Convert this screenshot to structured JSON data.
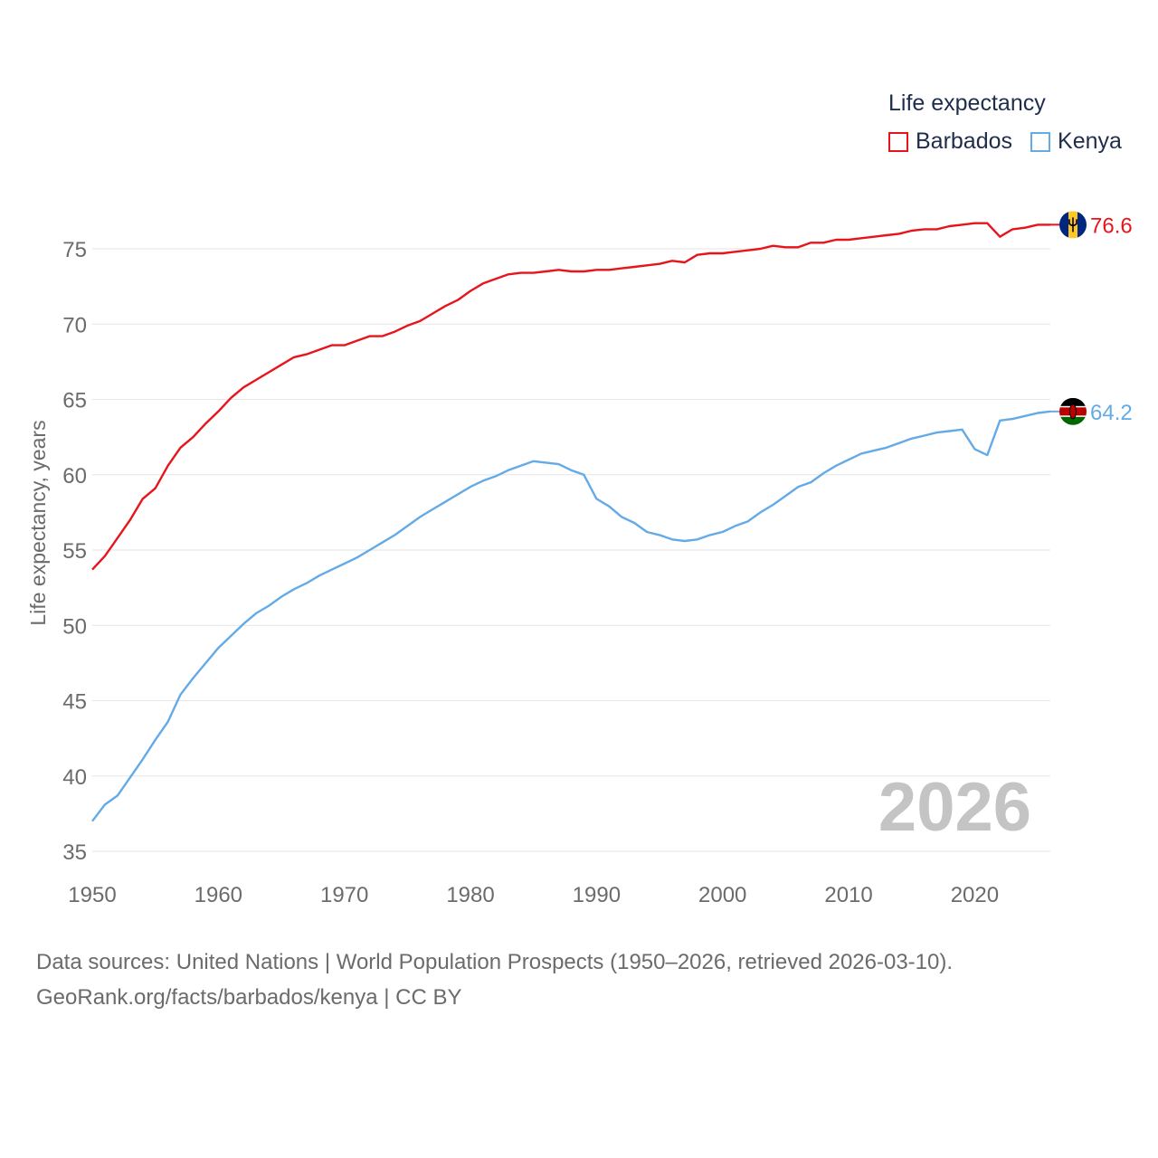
{
  "legend": {
    "title": "Life expectancy",
    "items": [
      {
        "label": "Barbados",
        "color": "#e8141c"
      },
      {
        "label": "Kenya",
        "color": "#64aae6"
      }
    ]
  },
  "source": {
    "line1": "Data sources: United Nations | World Population Prospects (1950–2026, retrieved 2026-03-10).",
    "line2": "GeoRank.org/facts/barbados/kenya | CC BY"
  },
  "chart_data": {
    "type": "line",
    "title": "Life expectancy",
    "xlabel": "",
    "ylabel": "Life expectancy, years",
    "xlim": [
      1950,
      2026
    ],
    "ylim": [
      35,
      78
    ],
    "xticks": [
      1950,
      1960,
      1970,
      1980,
      1990,
      2000,
      2010,
      2020
    ],
    "yticks": [
      35,
      40,
      45,
      50,
      55,
      60,
      65,
      70,
      75
    ],
    "grid": true,
    "watermark_year": "2026",
    "legend_position": "top-right",
    "series": [
      {
        "name": "Barbados",
        "color": "#e8141c",
        "end_label": "76.6",
        "flag": "barbados-flag-icon",
        "points": [
          [
            1950,
            53.7
          ],
          [
            1951,
            54.6
          ],
          [
            1952,
            55.8
          ],
          [
            1953,
            57.0
          ],
          [
            1954,
            58.4
          ],
          [
            1955,
            59.1
          ],
          [
            1956,
            60.6
          ],
          [
            1957,
            61.8
          ],
          [
            1958,
            62.5
          ],
          [
            1959,
            63.4
          ],
          [
            1960,
            64.2
          ],
          [
            1961,
            65.1
          ],
          [
            1962,
            65.8
          ],
          [
            1963,
            66.3
          ],
          [
            1964,
            66.8
          ],
          [
            1965,
            67.3
          ],
          [
            1966,
            67.8
          ],
          [
            1967,
            68.0
          ],
          [
            1968,
            68.3
          ],
          [
            1969,
            68.6
          ],
          [
            1970,
            68.6
          ],
          [
            1971,
            68.9
          ],
          [
            1972,
            69.2
          ],
          [
            1973,
            69.2
          ],
          [
            1974,
            69.5
          ],
          [
            1975,
            69.9
          ],
          [
            1976,
            70.2
          ],
          [
            1977,
            70.7
          ],
          [
            1978,
            71.2
          ],
          [
            1979,
            71.6
          ],
          [
            1980,
            72.2
          ],
          [
            1981,
            72.7
          ],
          [
            1982,
            73.0
          ],
          [
            1983,
            73.3
          ],
          [
            1984,
            73.4
          ],
          [
            1985,
            73.4
          ],
          [
            1986,
            73.5
          ],
          [
            1987,
            73.6
          ],
          [
            1988,
            73.5
          ],
          [
            1989,
            73.5
          ],
          [
            1990,
            73.6
          ],
          [
            1991,
            73.6
          ],
          [
            1992,
            73.7
          ],
          [
            1993,
            73.8
          ],
          [
            1994,
            73.9
          ],
          [
            1995,
            74.0
          ],
          [
            1996,
            74.2
          ],
          [
            1997,
            74.1
          ],
          [
            1998,
            74.6
          ],
          [
            1999,
            74.7
          ],
          [
            2000,
            74.7
          ],
          [
            2001,
            74.8
          ],
          [
            2002,
            74.9
          ],
          [
            2003,
            75.0
          ],
          [
            2004,
            75.2
          ],
          [
            2005,
            75.1
          ],
          [
            2006,
            75.1
          ],
          [
            2007,
            75.4
          ],
          [
            2008,
            75.4
          ],
          [
            2009,
            75.6
          ],
          [
            2010,
            75.6
          ],
          [
            2011,
            75.7
          ],
          [
            2012,
            75.8
          ],
          [
            2013,
            75.9
          ],
          [
            2014,
            76.0
          ],
          [
            2015,
            76.2
          ],
          [
            2016,
            76.3
          ],
          [
            2017,
            76.3
          ],
          [
            2018,
            76.5
          ],
          [
            2019,
            76.6
          ],
          [
            2020,
            76.7
          ],
          [
            2021,
            76.7
          ],
          [
            2022,
            75.8
          ],
          [
            2023,
            76.3
          ],
          [
            2024,
            76.4
          ],
          [
            2025,
            76.6
          ],
          [
            2026,
            76.6
          ]
        ]
      },
      {
        "name": "Kenya",
        "color": "#64aae6",
        "end_label": "64.2",
        "flag": "kenya-flag-icon",
        "points": [
          [
            1950,
            37.0
          ],
          [
            1951,
            38.1
          ],
          [
            1952,
            38.7
          ],
          [
            1953,
            39.9
          ],
          [
            1954,
            41.1
          ],
          [
            1955,
            42.4
          ],
          [
            1956,
            43.6
          ],
          [
            1957,
            45.4
          ],
          [
            1958,
            46.5
          ],
          [
            1959,
            47.5
          ],
          [
            1960,
            48.5
          ],
          [
            1961,
            49.3
          ],
          [
            1962,
            50.1
          ],
          [
            1963,
            50.8
          ],
          [
            1964,
            51.3
          ],
          [
            1965,
            51.9
          ],
          [
            1966,
            52.4
          ],
          [
            1967,
            52.8
          ],
          [
            1968,
            53.3
          ],
          [
            1969,
            53.7
          ],
          [
            1970,
            54.1
          ],
          [
            1971,
            54.5
          ],
          [
            1972,
            55.0
          ],
          [
            1973,
            55.5
          ],
          [
            1974,
            56.0
          ],
          [
            1975,
            56.6
          ],
          [
            1976,
            57.2
          ],
          [
            1977,
            57.7
          ],
          [
            1978,
            58.2
          ],
          [
            1979,
            58.7
          ],
          [
            1980,
            59.2
          ],
          [
            1981,
            59.6
          ],
          [
            1982,
            59.9
          ],
          [
            1983,
            60.3
          ],
          [
            1984,
            60.6
          ],
          [
            1985,
            60.9
          ],
          [
            1986,
            60.8
          ],
          [
            1987,
            60.7
          ],
          [
            1988,
            60.3
          ],
          [
            1989,
            60.0
          ],
          [
            1990,
            58.4
          ],
          [
            1991,
            57.9
          ],
          [
            1992,
            57.2
          ],
          [
            1993,
            56.8
          ],
          [
            1994,
            56.2
          ],
          [
            1995,
            56.0
          ],
          [
            1996,
            55.7
          ],
          [
            1997,
            55.6
          ],
          [
            1998,
            55.7
          ],
          [
            1999,
            56.0
          ],
          [
            2000,
            56.2
          ],
          [
            2001,
            56.6
          ],
          [
            2002,
            56.9
          ],
          [
            2003,
            57.5
          ],
          [
            2004,
            58.0
          ],
          [
            2005,
            58.6
          ],
          [
            2006,
            59.2
          ],
          [
            2007,
            59.5
          ],
          [
            2008,
            60.1
          ],
          [
            2009,
            60.6
          ],
          [
            2010,
            61.0
          ],
          [
            2011,
            61.4
          ],
          [
            2012,
            61.6
          ],
          [
            2013,
            61.8
          ],
          [
            2014,
            62.1
          ],
          [
            2015,
            62.4
          ],
          [
            2016,
            62.6
          ],
          [
            2017,
            62.8
          ],
          [
            2018,
            62.9
          ],
          [
            2019,
            63.0
          ],
          [
            2020,
            61.7
          ],
          [
            2021,
            61.3
          ],
          [
            2022,
            63.6
          ],
          [
            2023,
            63.7
          ],
          [
            2024,
            63.9
          ],
          [
            2025,
            64.1
          ],
          [
            2026,
            64.2
          ]
        ]
      }
    ]
  }
}
